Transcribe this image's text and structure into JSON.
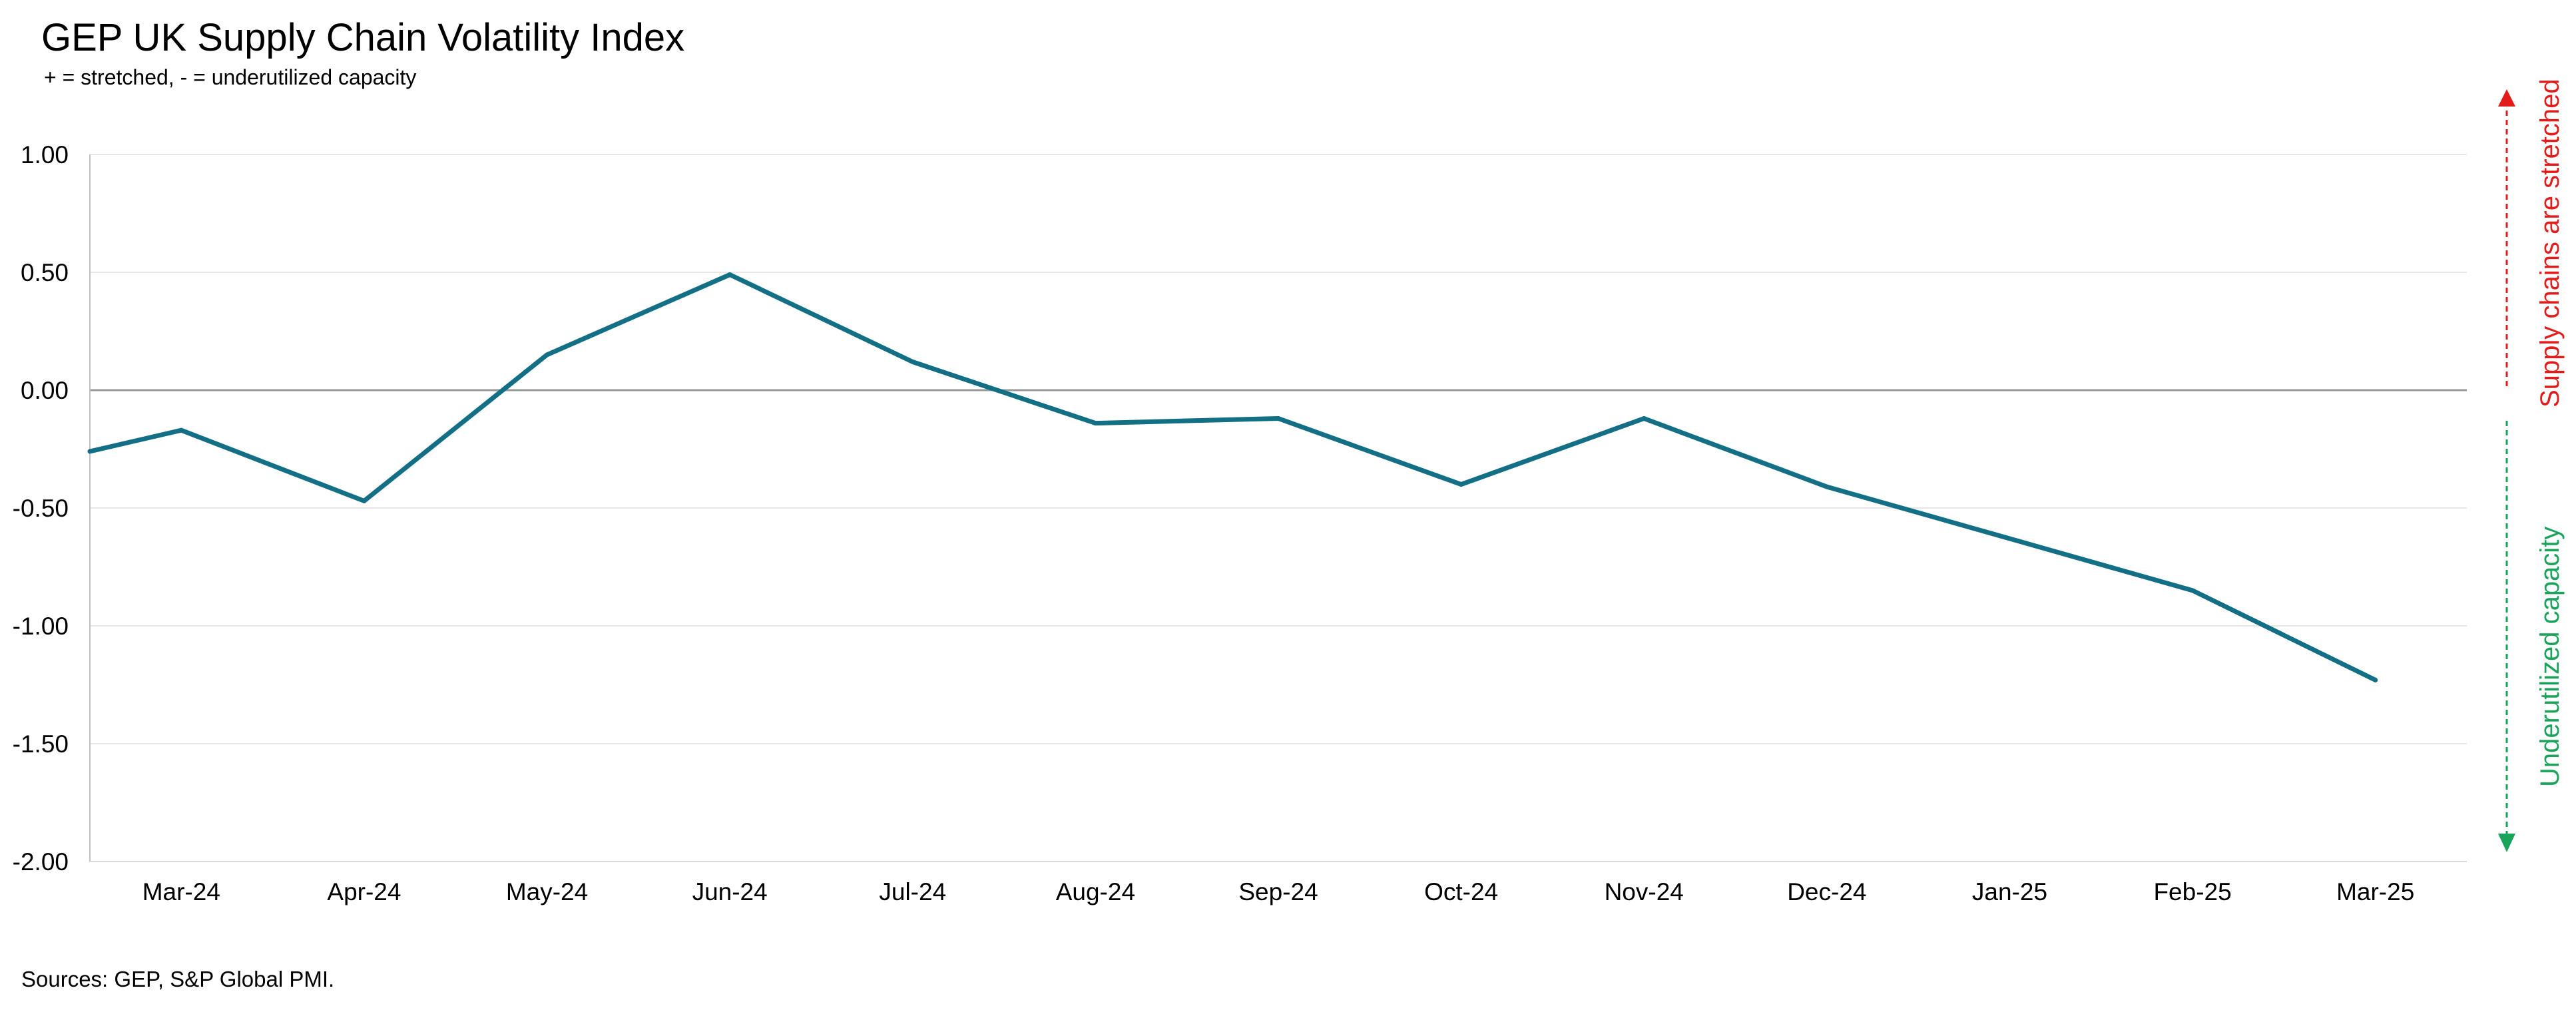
{
  "chart_data": {
    "type": "line",
    "title": "GEP UK Supply Chain Volatility Index",
    "subtitle": "+ = stretched, - = underutilized capacity",
    "categories": [
      "Mar-24",
      "Apr-24",
      "May-24",
      "Jun-24",
      "Jul-24",
      "Aug-24",
      "Sep-24",
      "Oct-24",
      "Nov-24",
      "Dec-24",
      "Jan-25",
      "Feb-25",
      "Mar-25"
    ],
    "series": [
      {
        "start_value": -0.26,
        "values": [
          -0.17,
          -0.47,
          0.15,
          0.49,
          0.12,
          -0.14,
          -0.12,
          -0.4,
          -0.12,
          -0.41,
          -0.63,
          -0.85,
          -1.23
        ],
        "color": "#136f85"
      }
    ],
    "y_ticks": [
      "1.00",
      "0.50",
      "0.00",
      "-0.50",
      "-1.00",
      "-1.50",
      "-2.00"
    ],
    "ylim": [
      -2.0,
      1.0
    ],
    "grid": true,
    "zero_line": true
  },
  "annotations": {
    "upper_label": "Supply chains are stretched",
    "upper_color": "#e31b1b",
    "lower_label": "Underutilized capacity",
    "lower_color": "#1aa35a"
  },
  "source": "Sources: GEP, S&P Global PMI."
}
